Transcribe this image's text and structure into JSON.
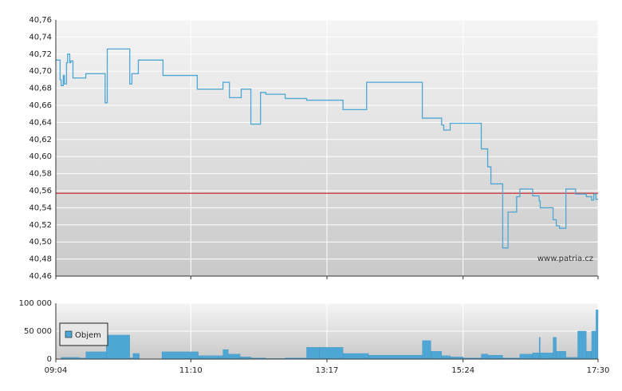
{
  "chart_data": [
    {
      "type": "line",
      "x": [
        "09:04",
        "09:08",
        "09:09",
        "09:11",
        "09:12",
        "09:14",
        "09:15",
        "09:17",
        "09:18",
        "09:20",
        "09:32",
        "09:50",
        "09:52",
        "10:13",
        "10:15",
        "10:21",
        "10:44",
        "11:16",
        "11:40",
        "11:46",
        "11:57",
        "12:06",
        "12:15",
        "12:20",
        "12:38",
        "12:58",
        "13:32",
        "13:54",
        "14:46",
        "15:04",
        "15:06",
        "15:12",
        "15:24",
        "15:41",
        "15:47",
        "15:50",
        "16:01",
        "16:06",
        "16:14",
        "16:17",
        "16:29",
        "16:35",
        "16:36",
        "16:48",
        "16:51",
        "16:54",
        "17:00",
        "17:09",
        "17:19",
        "17:24",
        "17:26",
        "17:28",
        "17:30"
      ],
      "series": [
        {
          "color": "#4ea6d4",
          "values": [
            40.713,
            40.69,
            40.683,
            40.695,
            40.685,
            40.71,
            40.72,
            40.71,
            40.712,
            40.692,
            40.697,
            40.663,
            40.726,
            40.685,
            40.697,
            40.713,
            40.695,
            40.679,
            40.687,
            40.669,
            40.679,
            40.638,
            40.675,
            40.673,
            40.668,
            40.666,
            40.655,
            40.687,
            40.645,
            40.637,
            40.631,
            40.639,
            40.639,
            40.609,
            40.588,
            40.568,
            40.493,
            40.535,
            40.553,
            40.562,
            40.554,
            40.548,
            40.54,
            40.526,
            40.519,
            40.516,
            40.562,
            40.556,
            40.553,
            40.549,
            40.556,
            40.55,
            40.55
          ]
        }
      ],
      "reference_line": {
        "value": 40.557,
        "color": "#d04848"
      },
      "xlim": [
        "09:04",
        "17:30"
      ],
      "xticks": [
        "09:04",
        "11:10",
        "13:17",
        "15:24",
        "17:30"
      ],
      "ylim": [
        40.46,
        40.76
      ],
      "yticks": [
        {
          "value": 40.46,
          "label": "40,46"
        },
        {
          "value": 40.48,
          "label": "40,48"
        },
        {
          "value": 40.5,
          "label": "40,50"
        },
        {
          "value": 40.52,
          "label": "40,52"
        },
        {
          "value": 40.54,
          "label": "40,54"
        },
        {
          "value": 40.56,
          "label": "40,56"
        },
        {
          "value": 40.58,
          "label": "40,58"
        },
        {
          "value": 40.6,
          "label": "40,60"
        },
        {
          "value": 40.62,
          "label": "40,62"
        },
        {
          "value": 40.64,
          "label": "40,64"
        },
        {
          "value": 40.66,
          "label": "40,66"
        },
        {
          "value": 40.68,
          "label": "40,68"
        },
        {
          "value": 40.7,
          "label": "40,70"
        },
        {
          "value": 40.72,
          "label": "40,72"
        },
        {
          "value": 40.74,
          "label": "40,74"
        },
        {
          "value": 40.76,
          "label": "40,76"
        }
      ],
      "grid": true,
      "watermark": "www.patria.cz"
    },
    {
      "type": "histogram",
      "bins": [
        "09:09",
        "09:19",
        "09:26",
        "09:32",
        "09:51",
        "10:13",
        "10:16",
        "10:22",
        "10:43",
        "11:17",
        "11:40",
        "11:45",
        "11:56",
        "12:06",
        "12:20",
        "12:38",
        "12:58",
        "13:10",
        "13:32",
        "13:56",
        "14:46",
        "14:54",
        "15:04",
        "15:12",
        "15:24",
        "15:41",
        "15:47",
        "16:01",
        "16:17",
        "16:29",
        "16:35",
        "16:36",
        "16:48",
        "16:51",
        "17:00",
        "17:09",
        "17:11",
        "17:19",
        "17:24",
        "17:28",
        "17:30"
      ],
      "series": [
        {
          "name": "Objem",
          "color": "#4ea6d4",
          "values": [
            3000,
            3000,
            2000,
            13000,
            43000,
            2000,
            10000,
            0,
            13000,
            6000,
            17000,
            9000,
            4000,
            2000,
            1000,
            2000,
            21000,
            21000,
            10000,
            7000,
            33000,
            14000,
            6000,
            4000,
            2000,
            9000,
            7000,
            2000,
            9000,
            11000,
            39000,
            11000,
            39000,
            14000,
            3000,
            3000,
            50000,
            14000,
            50000,
            88000
          ]
        }
      ],
      "xlim": [
        "09:04",
        "17:30"
      ],
      "xticks": [
        "09:04",
        "11:10",
        "13:17",
        "15:24",
        "17:30"
      ],
      "ylim": [
        0,
        100000
      ],
      "yticks": [
        0,
        {
          "value": 50000,
          "label": "50 000"
        },
        {
          "value": 100000,
          "label": "100 000"
        }
      ],
      "grid": true,
      "legend": "upper-left"
    }
  ]
}
